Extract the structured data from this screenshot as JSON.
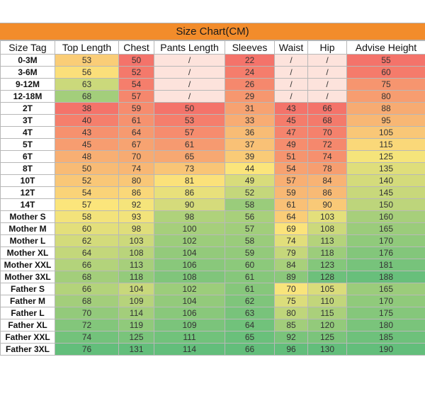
{
  "title": "Size Chart(CM)",
  "headers": [
    "Size Tag",
    "Top Length",
    "Chest",
    "Pants Length",
    "Sleeves",
    "Waist",
    "Hip",
    "Advise Height"
  ],
  "rows": [
    [
      "0-3M",
      "53",
      "50",
      "/",
      "22",
      "/",
      "/",
      "55"
    ],
    [
      "3-6M",
      "56",
      "52",
      "/",
      "24",
      "/",
      "/",
      "60"
    ],
    [
      "9-12M",
      "63",
      "54",
      "/",
      "26",
      "/",
      "/",
      "75"
    ],
    [
      "12-18M",
      "68",
      "57",
      "/",
      "29",
      "/",
      "/",
      "80"
    ],
    [
      "2T",
      "38",
      "59",
      "50",
      "31",
      "43",
      "66",
      "88"
    ],
    [
      "3T",
      "40",
      "61",
      "53",
      "33",
      "45",
      "68",
      "95"
    ],
    [
      "4T",
      "43",
      "64",
      "57",
      "36",
      "47",
      "70",
      "105"
    ],
    [
      "5T",
      "45",
      "67",
      "61",
      "37",
      "49",
      "72",
      "115"
    ],
    [
      "6T",
      "48",
      "70",
      "65",
      "39",
      "51",
      "74",
      "125"
    ],
    [
      "8T",
      "50",
      "74",
      "73",
      "44",
      "54",
      "78",
      "135"
    ],
    [
      "10T",
      "52",
      "80",
      "81",
      "49",
      "57",
      "84",
      "140"
    ],
    [
      "12T",
      "54",
      "86",
      "86",
      "52",
      "59",
      "86",
      "145"
    ],
    [
      "14T",
      "57",
      "92",
      "90",
      "58",
      "61",
      "90",
      "150"
    ],
    [
      "Mother S",
      "58",
      "93",
      "98",
      "56",
      "64",
      "103",
      "160"
    ],
    [
      "Mother M",
      "60",
      "98",
      "100",
      "57",
      "69",
      "108",
      "165"
    ],
    [
      "Mother L",
      "62",
      "103",
      "102",
      "58",
      "74",
      "113",
      "170"
    ],
    [
      "Mother XL",
      "64",
      "108",
      "104",
      "59",
      "79",
      "118",
      "176"
    ],
    [
      "Mother XXL",
      "66",
      "113",
      "106",
      "60",
      "84",
      "123",
      "181"
    ],
    [
      "Mother 3XL",
      "68",
      "118",
      "108",
      "61",
      "89",
      "128",
      "188"
    ],
    [
      "Father S",
      "66",
      "104",
      "102",
      "61",
      "70",
      "105",
      "165"
    ],
    [
      "Father M",
      "68",
      "109",
      "104",
      "62",
      "75",
      "110",
      "170"
    ],
    [
      "Father L",
      "70",
      "114",
      "106",
      "63",
      "80",
      "115",
      "175"
    ],
    [
      "Father XL",
      "72",
      "119",
      "109",
      "64",
      "85",
      "120",
      "180"
    ],
    [
      "Father XXL",
      "74",
      "125",
      "111",
      "65",
      "92",
      "125",
      "185"
    ],
    [
      "Father 3XL",
      "76",
      "131",
      "114",
      "66",
      "96",
      "130",
      "190"
    ]
  ],
  "colors": {
    "title_bg": "#f28c2b",
    "scale_low": "#f4736a",
    "scale_mid": "#fbe57b",
    "scale_high": "#63be7b",
    "empty_cell": "#fde3dc"
  }
}
